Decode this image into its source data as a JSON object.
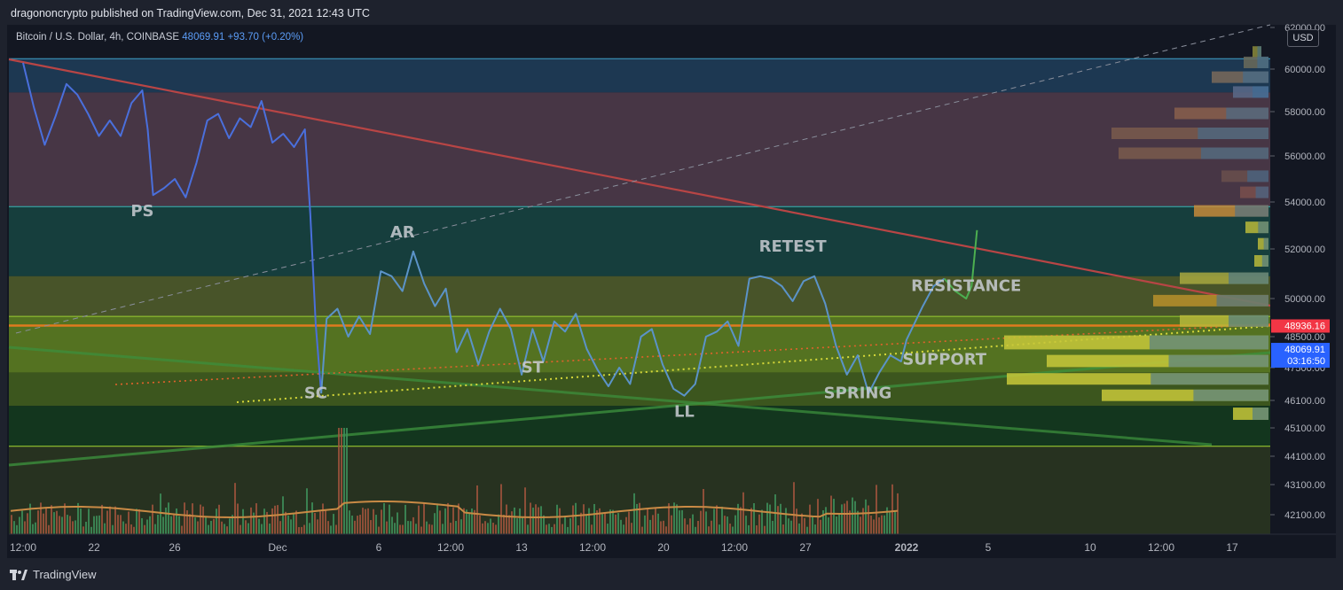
{
  "header": {
    "publisher_text": "dragononcrypto published on TradingView.com, Dec 31, 2021 12:43 UTC"
  },
  "symbol": {
    "name": "Bitcoin / U.S. Dollar, 4h, COINBASE",
    "last": "48069.91",
    "change": "+93.70 (+0.20%)"
  },
  "currency_label": "USD",
  "footer": {
    "brand": "TradingView"
  },
  "colors": {
    "price_line": "#4a6fdc",
    "price_line_mid": "#5b93c8",
    "price_line_recent": "#4caf50",
    "trend_line": "#b84545",
    "resistance_zone": "#6b6b2f",
    "support_zone": "#6c8a1f",
    "upper_zone": "#4e3a4c",
    "current_price_badge": "#2962ff",
    "alert_price_badge": "#f23645"
  },
  "chart_data": {
    "type": "line",
    "title": "",
    "xlabel": "",
    "ylabel": "",
    "ylim": [
      41500,
      62000
    ],
    "x_ticks": [
      "12:00",
      "22",
      "26",
      "Dec",
      "6",
      "12:00",
      "13",
      "12:00",
      "20",
      "12:00",
      "27",
      "2022",
      "5",
      "10",
      "12:00",
      "17"
    ],
    "y_ticks": [
      "62000.00",
      "60000.00",
      "58000.00",
      "56000.00",
      "54000.00",
      "52000.00",
      "50000.00",
      "48500.00",
      "47500.00",
      "46100.00",
      "45100.00",
      "44100.00",
      "43100.00",
      "42100.00"
    ],
    "price_badges": [
      {
        "label": "48936.16",
        "value": 48936.16,
        "color": "#f23645"
      },
      {
        "label": "48069.91",
        "sublabel": "03:16:50",
        "value": 48069.91,
        "color": "#2962ff"
      }
    ],
    "annotations": [
      {
        "text": "PS",
        "x": "Nov 26",
        "y": 53400
      },
      {
        "text": "SC",
        "x": "Dec 4",
        "y": 46200
      },
      {
        "text": "AR",
        "x": "Dec 8",
        "y": 52500
      },
      {
        "text": "ST",
        "x": "Dec 14",
        "y": 47300
      },
      {
        "text": "LL",
        "x": "Dec 21",
        "y": 45500
      },
      {
        "text": "RETEST",
        "x": "Dec 26",
        "y": 51900
      },
      {
        "text": "SPRING",
        "x": "Dec 29",
        "y": 46200
      },
      {
        "text": "RESISTANCE",
        "x": "Jan 3",
        "y": 50300
      },
      {
        "text": "SUPPORT",
        "x": "Jan 2",
        "y": 47600
      }
    ],
    "zones": [
      {
        "name": "upper-band",
        "from": 58900,
        "to": 60500
      },
      {
        "name": "range-high",
        "from": 53800,
        "to": 58900
      },
      {
        "name": "mid-range",
        "from": 50900,
        "to": 53800
      },
      {
        "name": "resistance-zone",
        "from": 47300,
        "to": 50900
      },
      {
        "name": "support-zone",
        "from": 45900,
        "to": 49300
      }
    ],
    "series": [
      {
        "values": [
          [
            "Nov 20 12:00",
            60300
          ],
          [
            "Nov 21",
            58200
          ],
          [
            "Nov 21 12:00",
            56500
          ],
          [
            "Nov 22",
            57800
          ],
          [
            "Nov 22 12:00",
            59300
          ],
          [
            "Nov 23",
            58800
          ],
          [
            "Nov 23 12:00",
            57900
          ],
          [
            "Nov 24",
            56900
          ],
          [
            "Nov 24 12:00",
            57600
          ],
          [
            "Nov 25",
            56900
          ],
          [
            "Nov 25 12:00",
            58400
          ],
          [
            "Nov 26",
            59000
          ],
          [
            "Nov 26 06:00",
            57200
          ],
          [
            "Nov 26 12:00",
            54300
          ],
          [
            "Nov 27",
            54600
          ],
          [
            "Nov 27 12:00",
            55000
          ],
          [
            "Nov 28",
            54200
          ],
          [
            "Nov 28 12:00",
            55700
          ],
          [
            "Nov 29",
            57600
          ],
          [
            "Nov 29 12:00",
            57900
          ],
          [
            "Nov 30",
            56800
          ],
          [
            "Nov 30 12:00",
            57700
          ],
          [
            "Dec 1",
            57300
          ],
          [
            "Dec 1 12:00",
            58500
          ],
          [
            "Dec 2",
            56600
          ],
          [
            "Dec 2 12:00",
            57000
          ],
          [
            "Dec 3",
            56400
          ],
          [
            "Dec 3 12:00",
            57200
          ],
          [
            "Dec 3 18:00",
            53500
          ],
          [
            "Dec 4",
            49000
          ],
          [
            "Dec 4 06:00",
            46400
          ],
          [
            "Dec 4 12:00",
            49200
          ],
          [
            "Dec 5",
            49600
          ],
          [
            "Dec 5 12:00",
            48500
          ],
          [
            "Dec 6",
            49300
          ],
          [
            "Dec 6 12:00",
            48600
          ],
          [
            "Dec 7",
            51100
          ],
          [
            "Dec 7 12:00",
            50900
          ],
          [
            "Dec 8",
            50300
          ],
          [
            "Dec 8 12:00",
            51900
          ],
          [
            "Dec 9",
            50600
          ],
          [
            "Dec 9 12:00",
            49700
          ],
          [
            "Dec 10",
            50400
          ],
          [
            "Dec 10 12:00",
            48000
          ],
          [
            "Dec 11",
            48800
          ],
          [
            "Dec 11 12:00",
            47600
          ],
          [
            "Dec 12",
            48700
          ],
          [
            "Dec 12 12:00",
            49600
          ],
          [
            "Dec 13",
            48800
          ],
          [
            "Dec 13 12:00",
            47200
          ],
          [
            "Dec 14",
            48800
          ],
          [
            "Dec 14 12:00",
            47700
          ],
          [
            "Dec 15",
            49100
          ],
          [
            "Dec 15 12:00",
            48700
          ],
          [
            "Dec 16",
            49400
          ],
          [
            "Dec 16 12:00",
            48100
          ],
          [
            "Dec 17",
            47400
          ],
          [
            "Dec 17 12:00",
            46700
          ],
          [
            "Dec 18",
            47500
          ],
          [
            "Dec 18 12:00",
            46800
          ],
          [
            "Dec 19",
            48500
          ],
          [
            "Dec 19 12:00",
            48800
          ],
          [
            "Dec 20",
            47600
          ],
          [
            "Dec 20 12:00",
            46600
          ],
          [
            "Dec 21",
            46300
          ],
          [
            "Dec 21 12:00",
            46800
          ],
          [
            "Dec 22",
            48500
          ],
          [
            "Dec 22 12:00",
            48700
          ],
          [
            "Dec 23",
            49100
          ],
          [
            "Dec 23 12:00",
            48200
          ],
          [
            "Dec 24",
            50800
          ],
          [
            "Dec 24 12:00",
            50900
          ],
          [
            "Dec 25",
            50800
          ],
          [
            "Dec 25 12:00",
            50500
          ],
          [
            "Dec 26",
            49900
          ],
          [
            "Dec 26 12:00",
            50700
          ],
          [
            "Dec 27",
            50900
          ],
          [
            "Dec 27 12:00",
            49800
          ],
          [
            "Dec 28",
            48200
          ],
          [
            "Dec 28 12:00",
            47200
          ],
          [
            "Dec 29",
            47900
          ],
          [
            "Dec 29 12:00",
            46400
          ],
          [
            "Dec 30",
            47300
          ],
          [
            "Dec 30 12:00",
            47900
          ],
          [
            "Dec 31",
            47700
          ],
          [
            "Dec 31 06:00",
            48400
          ],
          [
            "Jan 1",
            49700
          ],
          [
            "Jan 1 12:00",
            50500
          ],
          [
            "Jan 2",
            50800
          ],
          [
            "Jan 2 12:00",
            50300
          ],
          [
            "Jan 3",
            50000
          ],
          [
            "Jan 3 06:00",
            50500
          ],
          [
            "Jan 3 12:00",
            52800
          ]
        ]
      }
    ],
    "volume_profile": "horizontal volume-by-price histogram on right edge",
    "grid": false,
    "legend": "none"
  }
}
